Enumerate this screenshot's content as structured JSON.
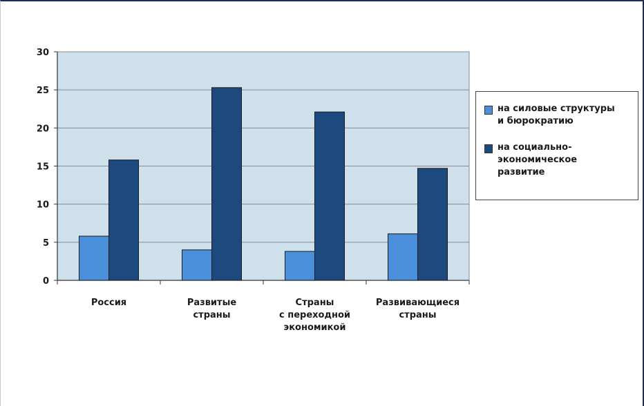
{
  "chart_data": {
    "type": "bar",
    "categories": [
      "Россия",
      "Развитые страны",
      "Страны с переходной экономикой",
      "Развивающиеся страны"
    ],
    "category_lines": [
      [
        "Россия"
      ],
      [
        "Развитые",
        "страны"
      ],
      [
        "Страны",
        "с переходной",
        "экономикой"
      ],
      [
        "Развивающиеся",
        "страны"
      ]
    ],
    "series": [
      {
        "name": "на силовые структуры и бюрократию",
        "values": [
          5.8,
          4.0,
          3.8,
          6.1
        ],
        "color": "#4a8fd9"
      },
      {
        "name": "на социально-экономическое развитие",
        "values": [
          15.8,
          25.3,
          22.1,
          14.7
        ],
        "color": "#1c4a7e"
      }
    ],
    "legend_lines": [
      [
        "на силовые структуры",
        "и бюрократию"
      ],
      [
        "на социально-",
        "экономическое",
        "развитие"
      ]
    ],
    "ylim": [
      0,
      30
    ],
    "yticks": [
      "0",
      "5",
      "10",
      "15",
      "20",
      "25",
      "30"
    ],
    "grid": true,
    "plot_background": "#cde0ec",
    "legend_position": "right",
    "title": "",
    "xlabel": "",
    "ylabel": ""
  }
}
